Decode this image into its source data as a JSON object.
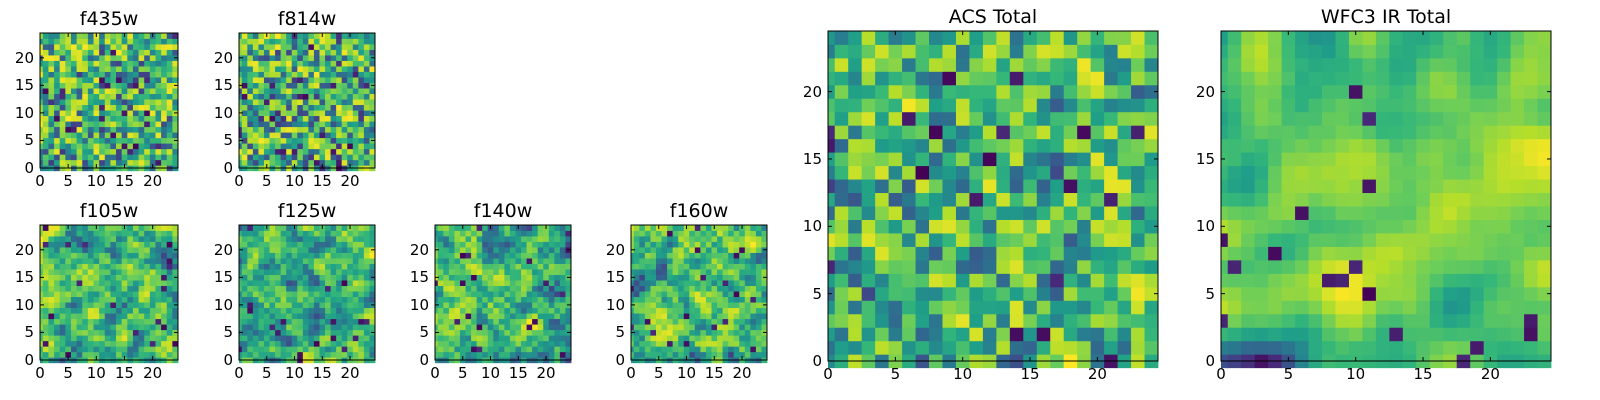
{
  "chart_data": [
    {
      "id": "f435w",
      "type": "heatmap",
      "title": "f435w",
      "size": 25,
      "xticks": [
        "0",
        "5",
        "10",
        "15",
        "20"
      ],
      "yticks": [
        "0",
        "5",
        "10",
        "15",
        "20"
      ],
      "colormap": "viridis",
      "vmin": 0,
      "vmax": 1,
      "smooth": 0.15,
      "seed": 11
    },
    {
      "id": "f814w",
      "type": "heatmap",
      "title": "f814w",
      "size": 25,
      "xticks": [
        "0",
        "5",
        "10",
        "15",
        "20"
      ],
      "yticks": [
        "0",
        "5",
        "10",
        "15",
        "20"
      ],
      "colormap": "viridis",
      "vmin": 0,
      "vmax": 1,
      "smooth": 0.25,
      "seed": 23
    },
    {
      "id": "f105w",
      "type": "heatmap",
      "title": "f105w",
      "size": 25,
      "xticks": [
        "0",
        "5",
        "10",
        "15",
        "20"
      ],
      "yticks": [
        "0",
        "5",
        "10",
        "15",
        "20"
      ],
      "colormap": "viridis",
      "vmin": 0,
      "vmax": 1,
      "smooth": 0.55,
      "seed": 37
    },
    {
      "id": "f125w",
      "type": "heatmap",
      "title": "f125w",
      "size": 25,
      "xticks": [
        "0",
        "5",
        "10",
        "15",
        "20"
      ],
      "yticks": [
        "0",
        "5",
        "10",
        "15",
        "20"
      ],
      "colormap": "viridis",
      "vmin": 0,
      "vmax": 1,
      "smooth": 0.55,
      "seed": 41
    },
    {
      "id": "f140w",
      "type": "heatmap",
      "title": "f140w",
      "size": 25,
      "xticks": [
        "0",
        "5",
        "10",
        "15",
        "20"
      ],
      "yticks": [
        "0",
        "5",
        "10",
        "15",
        "20"
      ],
      "colormap": "viridis",
      "vmin": 0,
      "vmax": 1,
      "smooth": 0.5,
      "seed": 53
    },
    {
      "id": "f160w",
      "type": "heatmap",
      "title": "f160w",
      "size": 25,
      "xticks": [
        "0",
        "5",
        "10",
        "15",
        "20"
      ],
      "yticks": [
        "0",
        "5",
        "10",
        "15",
        "20"
      ],
      "colormap": "viridis",
      "vmin": 0,
      "vmax": 1,
      "smooth": 0.55,
      "seed": 67
    },
    {
      "id": "acs_total",
      "type": "heatmap",
      "title": "ACS Total",
      "size": 25,
      "xticks": [
        "0",
        "5",
        "10",
        "15",
        "20"
      ],
      "yticks": [
        "0",
        "5",
        "10",
        "15",
        "20"
      ],
      "colormap": "viridis",
      "vmin": 0,
      "vmax": 1,
      "smooth": 0.35,
      "seed": 79
    },
    {
      "id": "wfc3_ir_total",
      "type": "heatmap",
      "title": "WFC3 IR Total",
      "size": 25,
      "xticks": [
        "0",
        "5",
        "10",
        "15",
        "20"
      ],
      "yticks": [
        "0",
        "5",
        "10",
        "15",
        "20"
      ],
      "colormap": "viridis",
      "vmin": 0,
      "vmax": 1,
      "smooth": 0.75,
      "seed": 97
    }
  ]
}
